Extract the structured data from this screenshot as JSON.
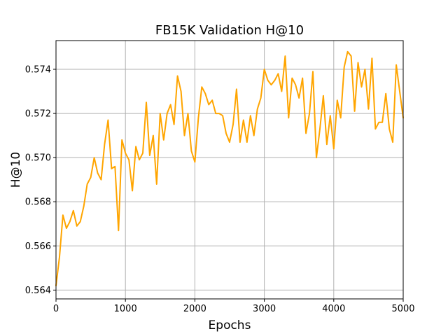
{
  "chart_data": {
    "type": "line",
    "title": "FB15K Validation H@10",
    "xlabel": "Epochs",
    "ylabel": "H@10",
    "xlim": [
      0,
      5000
    ],
    "ylim": [
      0.5636,
      0.5753
    ],
    "grid": true,
    "x_ticks": [
      0,
      1000,
      2000,
      3000,
      4000,
      5000
    ],
    "x_tick_labels": [
      "0",
      "1000",
      "2000",
      "3000",
      "4000",
      "5000"
    ],
    "y_ticks": [
      0.564,
      0.566,
      0.568,
      0.57,
      0.572,
      0.574
    ],
    "y_tick_labels": [
      "0.564",
      "0.566",
      "0.568",
      "0.570",
      "0.572",
      "0.574"
    ],
    "series": [
      {
        "name": "H@10",
        "color": "#ffa500",
        "x": [
          0,
          50,
          100,
          150,
          200,
          250,
          300,
          350,
          400,
          450,
          500,
          550,
          600,
          650,
          700,
          750,
          800,
          850,
          900,
          950,
          1000,
          1050,
          1100,
          1150,
          1200,
          1250,
          1300,
          1350,
          1400,
          1450,
          1500,
          1550,
          1600,
          1650,
          1700,
          1750,
          1800,
          1850,
          1900,
          1950,
          2000,
          2050,
          2100,
          2150,
          2200,
          2250,
          2300,
          2350,
          2400,
          2450,
          2500,
          2550,
          2600,
          2650,
          2700,
          2750,
          2800,
          2850,
          2900,
          2950,
          3000,
          3050,
          3100,
          3150,
          3200,
          3250,
          3300,
          3350,
          3400,
          3450,
          3500,
          3550,
          3600,
          3650,
          3700,
          3750,
          3800,
          3850,
          3900,
          3950,
          4000,
          4050,
          4100,
          4150,
          4200,
          4250,
          4300,
          4350,
          4400,
          4450,
          4500,
          4550,
          4600,
          4650,
          4700,
          4750,
          4800,
          4850,
          4900,
          4950,
          5000
        ],
        "values": [
          0.5642,
          0.5655,
          0.5674,
          0.5668,
          0.5671,
          0.5676,
          0.5669,
          0.5671,
          0.5678,
          0.5688,
          0.5691,
          0.57,
          0.5693,
          0.569,
          0.5706,
          0.5717,
          0.5695,
          0.5696,
          0.5667,
          0.5708,
          0.5702,
          0.5699,
          0.5685,
          0.5705,
          0.5699,
          0.5702,
          0.5725,
          0.5701,
          0.571,
          0.5688,
          0.572,
          0.5708,
          0.572,
          0.5724,
          0.5715,
          0.5737,
          0.573,
          0.571,
          0.572,
          0.5703,
          0.5698,
          0.5718,
          0.5732,
          0.5729,
          0.5724,
          0.5726,
          0.572,
          0.572,
          0.5719,
          0.5711,
          0.5707,
          0.5715,
          0.5731,
          0.5707,
          0.5717,
          0.5707,
          0.5719,
          0.571,
          0.5722,
          0.5727,
          0.574,
          0.5735,
          0.5733,
          0.5735,
          0.5738,
          0.573,
          0.5746,
          0.5718,
          0.5736,
          0.5733,
          0.5727,
          0.5736,
          0.5711,
          0.572,
          0.5739,
          0.57,
          0.5713,
          0.5728,
          0.5706,
          0.5719,
          0.5704,
          0.5726,
          0.5718,
          0.5741,
          0.5748,
          0.5746,
          0.5721,
          0.5743,
          0.5732,
          0.574,
          0.5722,
          0.5745,
          0.5713,
          0.5716,
          0.5716,
          0.5729,
          0.5713,
          0.5707,
          0.5742,
          0.573,
          0.5718
        ]
      }
    ]
  }
}
